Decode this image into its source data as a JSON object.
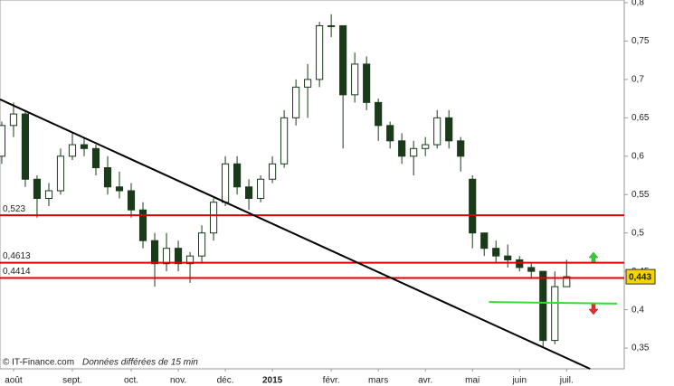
{
  "chart_data": {
    "type": "candlestick",
    "categories": [
      null,
      "août",
      null,
      null,
      null,
      null,
      "sept.",
      null,
      null,
      null,
      null,
      "oct.",
      null,
      null,
      null,
      "nov.",
      null,
      null,
      null,
      "déc.",
      null,
      null,
      null,
      "2015",
      null,
      null,
      null,
      null,
      "févr.",
      null,
      null,
      null,
      "mars",
      null,
      null,
      null,
      "avr.",
      null,
      null,
      null,
      "mai",
      null,
      null,
      null,
      "juin",
      null,
      null,
      null,
      "juil."
    ],
    "open": [
      0.6,
      0.64,
      0.655,
      0.57,
      0.545,
      0.555,
      0.6,
      0.615,
      0.61,
      0.585,
      0.56,
      0.555,
      0.53,
      0.49,
      0.46,
      0.48,
      0.46,
      0.47,
      0.5,
      0.54,
      0.59,
      0.56,
      0.545,
      0.57,
      0.59,
      0.65,
      0.69,
      0.7,
      0.77,
      0.77,
      0.68,
      0.72,
      0.67,
      0.64,
      0.62,
      0.6,
      0.61,
      0.615,
      0.65,
      0.62,
      0.57,
      0.5,
      0.48,
      0.47,
      0.465,
      0.455,
      0.45,
      0.36,
      0.43
    ],
    "high": [
      0.645,
      0.67,
      0.66,
      0.575,
      0.565,
      0.61,
      0.63,
      0.625,
      0.615,
      0.6,
      0.58,
      0.565,
      0.54,
      0.5,
      0.5,
      0.49,
      0.475,
      0.51,
      0.545,
      0.6,
      0.6,
      0.57,
      0.575,
      0.6,
      0.66,
      0.7,
      0.72,
      0.775,
      0.785,
      0.77,
      0.735,
      0.73,
      0.675,
      0.645,
      0.63,
      0.62,
      0.625,
      0.66,
      0.66,
      0.625,
      0.575,
      0.5,
      0.49,
      0.485,
      0.47,
      0.46,
      0.45,
      0.45,
      0.465
    ],
    "low": [
      0.59,
      0.625,
      0.56,
      0.52,
      0.535,
      0.55,
      0.595,
      0.6,
      0.575,
      0.55,
      0.545,
      0.52,
      0.48,
      0.43,
      0.45,
      0.45,
      0.435,
      0.46,
      0.49,
      0.535,
      0.55,
      0.53,
      0.54,
      0.565,
      0.585,
      0.64,
      0.65,
      0.69,
      0.755,
      0.61,
      0.67,
      0.66,
      0.62,
      0.61,
      0.59,
      0.575,
      0.6,
      0.61,
      0.61,
      0.58,
      0.48,
      0.47,
      0.46,
      0.455,
      0.45,
      0.44,
      0.35,
      0.355,
      0.43
    ],
    "close": [
      0.64,
      0.655,
      0.57,
      0.545,
      0.555,
      0.6,
      0.615,
      0.61,
      0.585,
      0.56,
      0.555,
      0.53,
      0.49,
      0.46,
      0.48,
      0.46,
      0.47,
      0.5,
      0.54,
      0.59,
      0.56,
      0.545,
      0.57,
      0.59,
      0.65,
      0.69,
      0.7,
      0.77,
      0.77,
      0.68,
      0.72,
      0.67,
      0.64,
      0.62,
      0.6,
      0.61,
      0.615,
      0.65,
      0.62,
      0.6,
      0.5,
      0.48,
      0.47,
      0.465,
      0.455,
      0.45,
      0.36,
      0.43,
      0.443
    ],
    "xlim": [
      -0.15,
      52.9
    ],
    "ylim": [
      0.323,
      0.8035
    ],
    "yticks": [
      {
        "value": 0.35,
        "label": "0,35"
      },
      {
        "value": 0.4,
        "label": "0,4"
      },
      {
        "value": 0.45,
        "label": "0,45"
      },
      {
        "value": 0.5,
        "label": "0,5"
      },
      {
        "value": 0.55,
        "label": "0,55"
      },
      {
        "value": 0.6,
        "label": "0,6"
      },
      {
        "value": 0.65,
        "label": "0,65"
      },
      {
        "value": 0.7,
        "label": "0,7"
      },
      {
        "value": 0.75,
        "label": "0,75"
      },
      {
        "value": 0.8,
        "label": "0,8"
      }
    ],
    "levels": [
      {
        "value": 0.523,
        "label": "0,523",
        "color": "#e00000"
      },
      {
        "value": 0.4613,
        "label": "0,4613",
        "color": "#e00000"
      },
      {
        "value": 0.4414,
        "label": "0,4414",
        "color": "#e00000"
      }
    ],
    "trendlines": [
      {
        "from": [
          -0.15,
          0.674
        ],
        "to": [
          50,
          0.323
        ],
        "color": "#000000"
      },
      {
        "from": [
          41.4,
          0.41
        ],
        "to": [
          52.3,
          0.408
        ],
        "color": "#33dd33"
      }
    ],
    "last_price": {
      "value": 0.443,
      "label": "0,443"
    },
    "footer": "© IT-Finance.com",
    "footer_note": "Données différées de 15 min"
  }
}
